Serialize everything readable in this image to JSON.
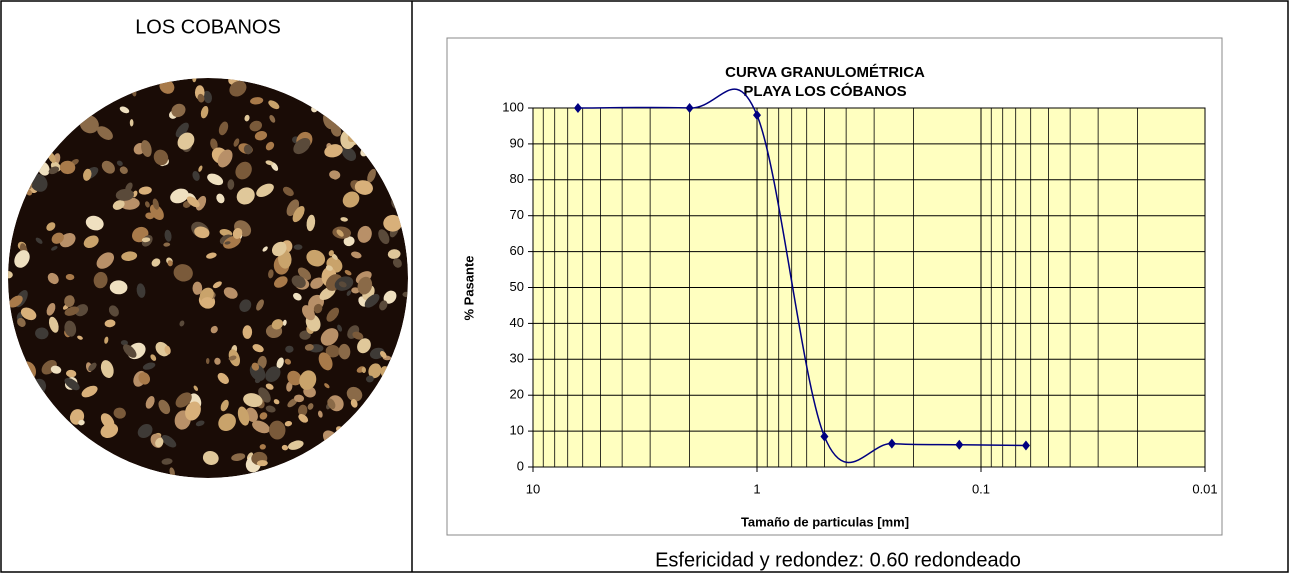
{
  "table": {
    "left": {
      "title": "LOS COBANOS"
    },
    "right": {
      "caption": "Esfericidad y redondez: 0.60 redondeado"
    }
  },
  "chart_data": {
    "type": "line",
    "title": "CURVA GRANULOMÉTRICA",
    "subtitle": "PLAYA LOS CÓBANOS",
    "x_label": "Tamaño de particulas [mm]",
    "y_label": "% Pasante",
    "x": [
      6.3,
      2,
      1,
      0.5,
      0.25,
      0.125,
      0.063
    ],
    "values": [
      100,
      100,
      98,
      8.5,
      6.5,
      6.2,
      6.0
    ],
    "color": "#000080",
    "plot_background": "#ffffc0",
    "xscale": "log",
    "xlim": [
      10,
      0.01
    ],
    "xticks": [
      10,
      1,
      0.1,
      0.01
    ],
    "ylim": [
      0,
      100
    ],
    "yticks": [
      0,
      10,
      20,
      30,
      40,
      50,
      60,
      70,
      80,
      90,
      100
    ],
    "grid": true,
    "minor_grid": true,
    "smooth": true
  }
}
